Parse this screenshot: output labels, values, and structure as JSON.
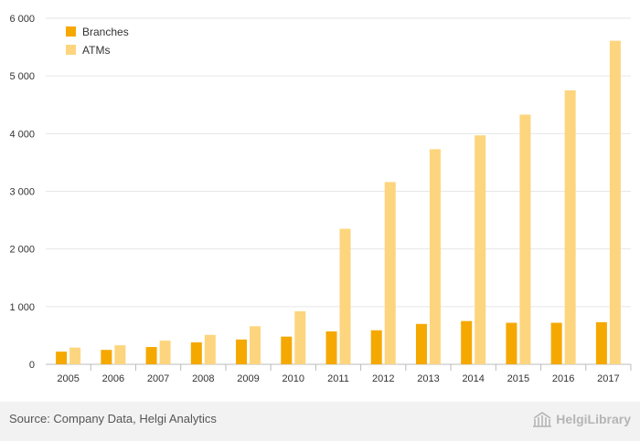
{
  "chart_data": {
    "type": "bar",
    "categories": [
      "2005",
      "2006",
      "2007",
      "2008",
      "2009",
      "2010",
      "2011",
      "2012",
      "2013",
      "2014",
      "2015",
      "2016",
      "2017"
    ],
    "series": [
      {
        "name": "Branches",
        "color": "#f5a800",
        "values": [
          220,
          250,
          300,
          380,
          430,
          480,
          570,
          590,
          700,
          750,
          720,
          720,
          730
        ]
      },
      {
        "name": "ATMs",
        "color": "#fdd57e",
        "values": [
          290,
          330,
          410,
          510,
          660,
          920,
          2350,
          3160,
          3730,
          3970,
          4330,
          4750,
          5610
        ]
      }
    ],
    "y_ticks": [
      0,
      1000,
      2000,
      3000,
      4000,
      5000,
      6000
    ],
    "y_tick_labels": [
      "0",
      "1 000",
      "2 000",
      "3 000",
      "4 000",
      "5 000",
      "6 000"
    ],
    "ylim": [
      0,
      6000
    ],
    "grid": true,
    "legend_position": "top-left",
    "title": "",
    "xlabel": "",
    "ylabel": ""
  },
  "footer": {
    "source": "Source: Company Data, Helgi Analytics",
    "brand": "HelgiLibrary"
  }
}
